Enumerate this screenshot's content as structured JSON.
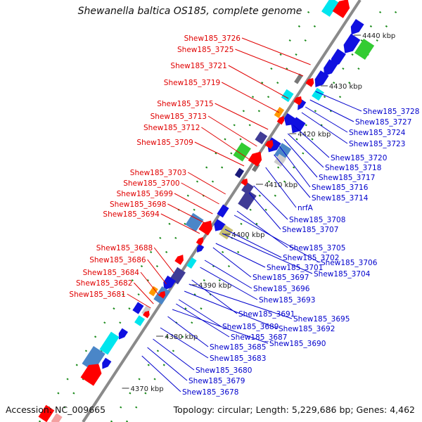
{
  "title": "Shewanella baltica OS185, complete genome",
  "footer": {
    "accession": "Accession: NC_009665",
    "summary": "Topology: circular; Length: 5,229,686 bp; Genes: 4,462"
  },
  "colors": {
    "backbone": "#8a8a8a",
    "left_labels": "#e00000",
    "right_labels": "#0000cc",
    "gene_blue": "#1010e0",
    "gene_red": "#ff0000",
    "gene_cyan": "#00e5ee",
    "gene_green": "#33cc33",
    "gene_steel": "#4a86c8",
    "gene_navy": "#1a1a7a",
    "gene_purple": "#403c96",
    "gene_olive": "#c8c070",
    "gene_orange": "#ff9900",
    "gene_grey": "#777777",
    "tick_green": "#1a8a1a"
  },
  "kbp_ticks": [
    "4440 kbp",
    "4430 kbp",
    "4420 kbp",
    "4410 kbp",
    "4400 kbp",
    "4390 kbp",
    "4380 kbp",
    "4370 kbp"
  ],
  "left_genes": [
    "Shew185_3726",
    "Shew185_3725",
    "Shew185_3721",
    "Shew185_3719",
    "Shew185_3715",
    "Shew185_3713",
    "Shew185_3712",
    "Shew185_3709",
    "Shew185_3703",
    "Shew185_3700",
    "Shew185_3699",
    "Shew185_3698",
    "Shew185_3694",
    "Shew185_3688",
    "Shew185_3686",
    "Shew185_3684",
    "Shew185_3682",
    "Shew185_3681"
  ],
  "right_genes": [
    "Shew185_3728",
    "Shew185_3727",
    "Shew185_3724",
    "Shew185_3723",
    "Shew185_3720",
    "Shew185_3718",
    "Shew185_3717",
    "Shew185_3716",
    "Shew185_3714",
    "nrfA",
    "Shew185_3708",
    "Shew185_3707",
    "Shew185_3705",
    "Shew185_3706",
    "Shew185_3702",
    "Shew185_3704",
    "Shew185_3701",
    "Shew185_3697",
    "Shew185_3696",
    "Shew185_3693",
    "Shew185_3691",
    "Shew185_3695",
    "Shew185_3692",
    "Shew185_3689",
    "Shew185_3687",
    "Shew185_3690",
    "Shew185_3685",
    "Shew185_3683",
    "Shew185_3680",
    "Shew185_3679",
    "Shew185_3678"
  ]
}
